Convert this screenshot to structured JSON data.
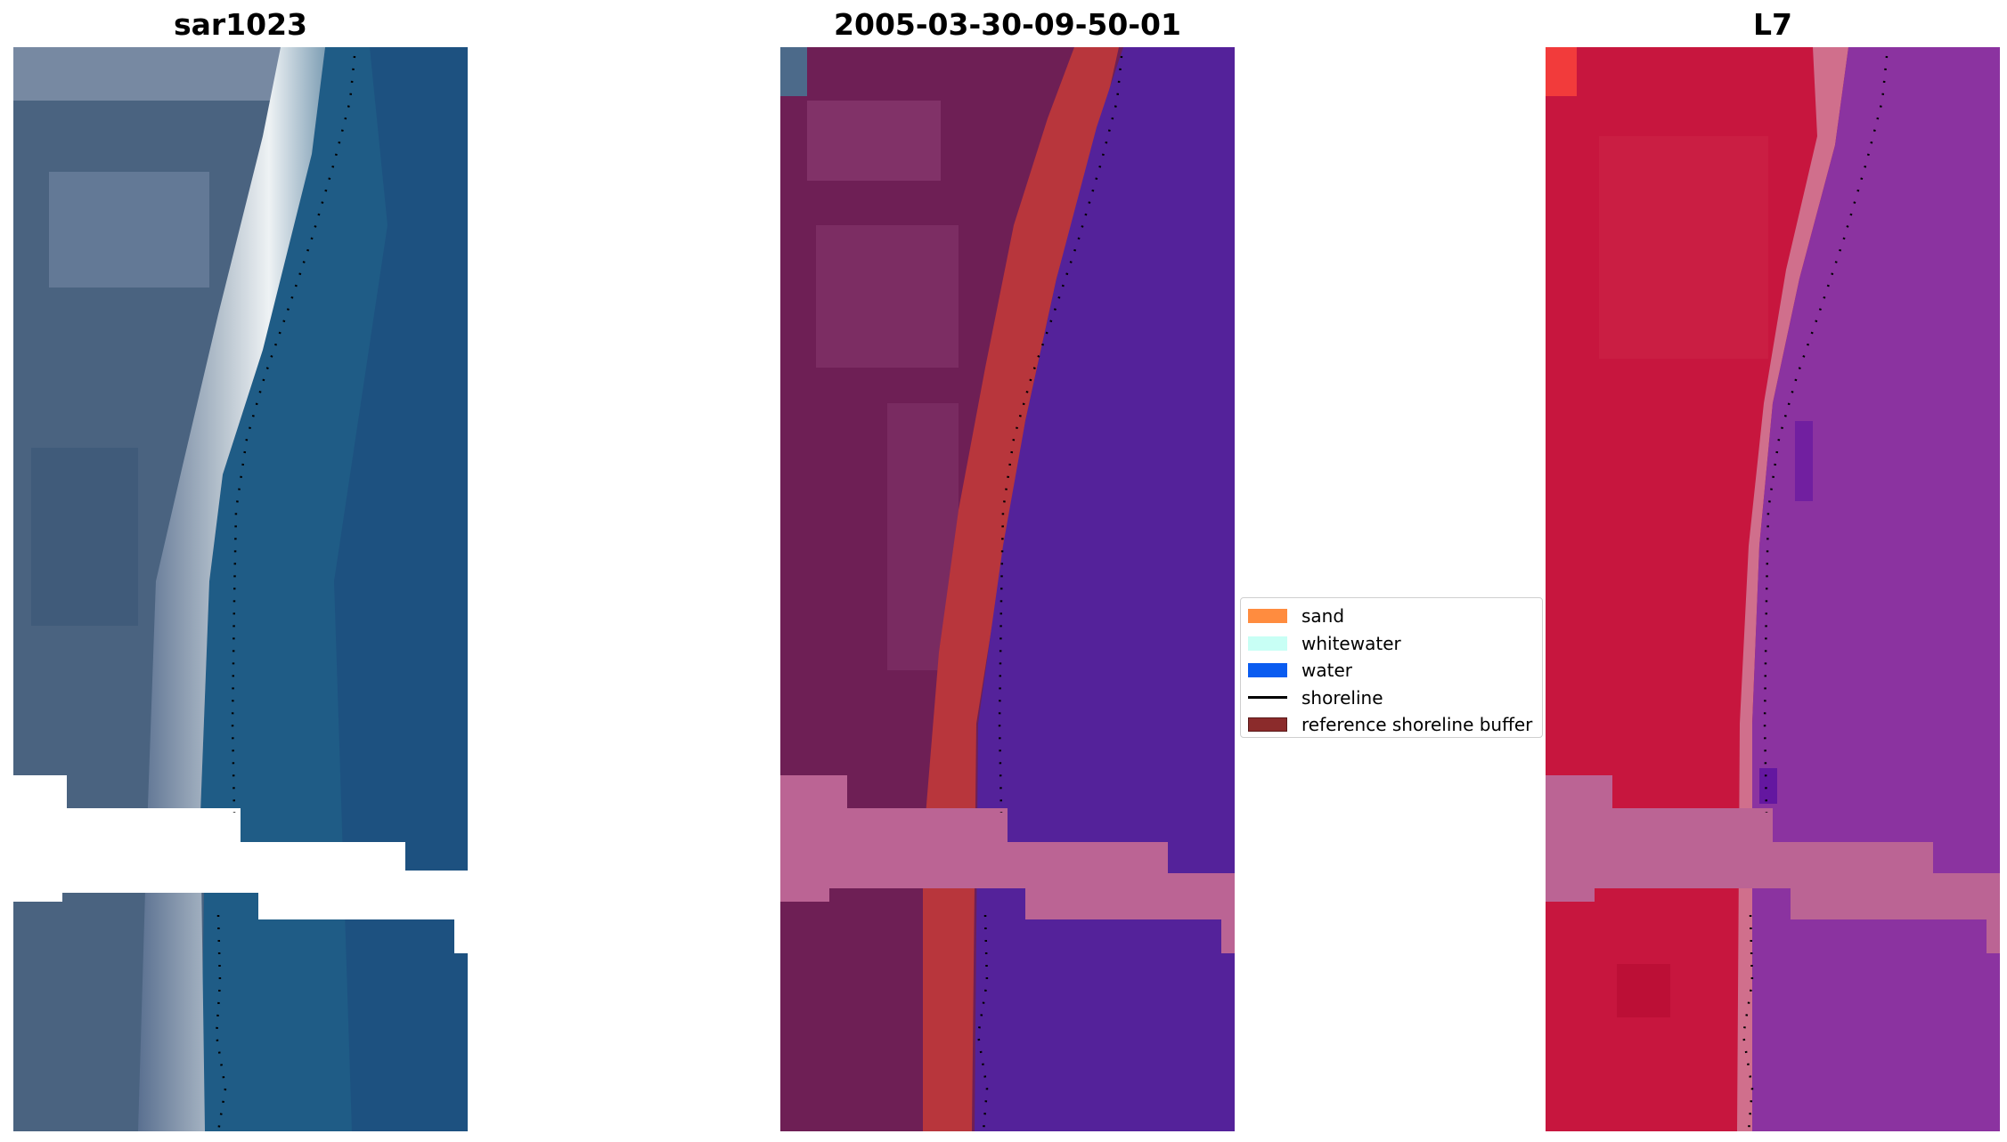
{
  "panels": {
    "left": {
      "title": "sar1023"
    },
    "middle": {
      "title": "2005-03-30-09-50-01"
    },
    "right": {
      "title": "L7"
    }
  },
  "legend": {
    "items": [
      {
        "label": "sand",
        "color": "#ff8c3f",
        "kind": "patch"
      },
      {
        "label": "whitewater",
        "color": "#c8fff5",
        "kind": "patch"
      },
      {
        "label": "water",
        "color": "#0a5cf0",
        "kind": "patch"
      },
      {
        "label": "shoreline",
        "color": "#000000",
        "kind": "line"
      },
      {
        "label": "reference shoreline buffer",
        "color": "#8b2b2b",
        "kind": "patch"
      }
    ]
  },
  "colors": {
    "sat_land": "#4a6380",
    "sat_beach": "#c9d3dc",
    "sat_water": "#1f5c86",
    "class_land": "#6e1f55",
    "class_buffer": "#b8363c",
    "class_water": "#54229a",
    "class_nodata": "#bb6494",
    "l7_land": "#c7163e",
    "l7_water": "#8b33a0",
    "nodata_stripe": "#ffffff"
  }
}
